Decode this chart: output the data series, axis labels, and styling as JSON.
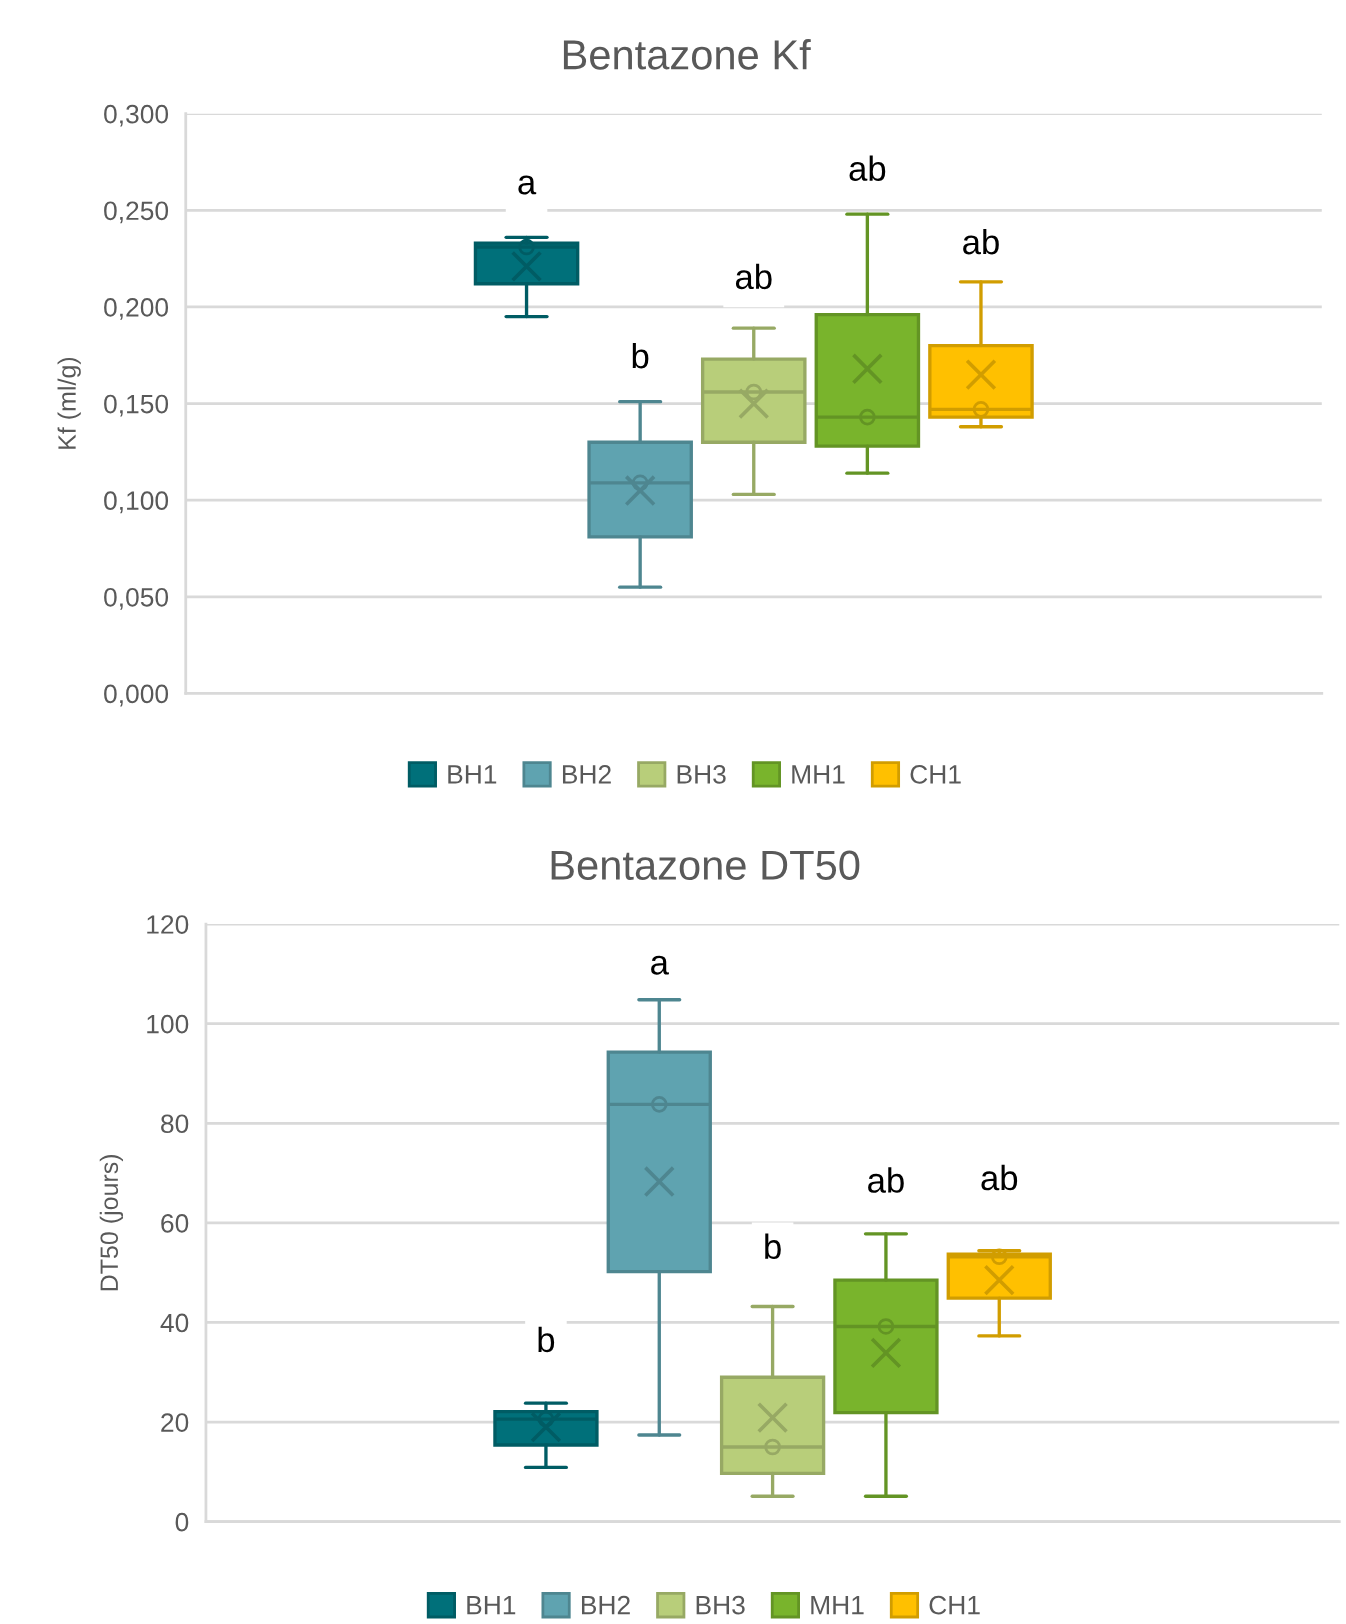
{
  "chart_data": [
    {
      "type": "box",
      "title": "Bentazone Kf",
      "ylabel": "Kf (ml/g)",
      "categories": [
        null
      ],
      "ylim": [
        0,
        0.3
      ],
      "yticks": [
        {
          "value": 0,
          "label": "0,000"
        },
        {
          "value": 0.05,
          "label": "0,050"
        },
        {
          "value": 0.1,
          "label": "0,100"
        },
        {
          "value": 0.15,
          "label": "0,150"
        },
        {
          "value": 0.2,
          "label": "0,200"
        },
        {
          "value": 0.25,
          "label": "0,250"
        },
        {
          "value": 0.3,
          "label": "0,300"
        }
      ],
      "grid": "y",
      "legend": "bottom",
      "series": [
        {
          "name": "BH1",
          "color": "#00707a",
          "boxes": [
            {
              "low": 0.195,
              "q1": 0.212,
              "median": 0.231,
              "q3": 0.233,
              "high": 0.236,
              "mean": 0.221
            }
          ]
        },
        {
          "name": "BH2",
          "color": "#5fa3b0",
          "boxes": [
            {
              "low": 0.055,
              "q1": 0.081,
              "median": 0.109,
              "q3": 0.13,
              "high": 0.151,
              "mean": 0.105
            }
          ]
        },
        {
          "name": "BH3",
          "color": "#b8ce7a",
          "boxes": [
            {
              "low": 0.103,
              "q1": 0.13,
              "median": 0.156,
              "q3": 0.173,
              "high": 0.189,
              "mean": 0.15
            }
          ]
        },
        {
          "name": "MH1",
          "color": "#79b42c",
          "boxes": [
            {
              "low": 0.114,
              "q1": 0.128,
              "median": 0.143,
              "q3": 0.196,
              "high": 0.248,
              "mean": 0.168
            }
          ]
        },
        {
          "name": "CH1",
          "color": "#ffc000",
          "boxes": [
            {
              "low": 0.138,
              "q1": 0.143,
              "median": 0.147,
              "q3": 0.18,
              "high": 0.213,
              "mean": 0.165
            }
          ]
        }
      ],
      "annotations": [
        {
          "text": "a",
          "y": 0.263
        },
        {
          "text": "b",
          "y": 0.173
        },
        {
          "text": "ab",
          "y": 0.214
        },
        {
          "text": "ab",
          "y": 0.27
        },
        {
          "text": "ab",
          "y": 0.232
        }
      ]
    },
    {
      "type": "box",
      "title": "Bentazone DT50",
      "ylabel": "DT50 (jours)",
      "categories": [
        null
      ],
      "ylim": [
        0,
        120
      ],
      "yticks": [
        0,
        20,
        40,
        60,
        80,
        100,
        120
      ],
      "grid": "y",
      "legend": "bottom",
      "series": [
        {
          "name": "BH1",
          "color": "#00707a",
          "boxes": [
            {
              "low": 10.9,
              "q1": 15.4,
              "median": 20.6,
              "q3": 22.1,
              "high": 23.8,
              "mean": 19.0
            }
          ]
        },
        {
          "name": "BH2",
          "color": "#5fa3b0",
          "boxes": [
            {
              "low": 17.4,
              "q1": 50.2,
              "median": 83.8,
              "q3": 94.3,
              "high": 104.8,
              "mean": 68.3
            }
          ]
        },
        {
          "name": "BH3",
          "color": "#b8ce7a",
          "boxes": [
            {
              "low": 5.1,
              "q1": 9.7,
              "median": 15.0,
              "q3": 29.0,
              "high": 43.2,
              "mean": 20.9
            }
          ]
        },
        {
          "name": "MH1",
          "color": "#79b42c",
          "boxes": [
            {
              "low": 5.1,
              "q1": 21.9,
              "median": 39.2,
              "q3": 48.5,
              "high": 57.8,
              "mean": 33.9
            }
          ]
        },
        {
          "name": "CH1",
          "color": "#ffc000",
          "boxes": [
            {
              "low": 37.3,
              "q1": 44.9,
              "median": 53.2,
              "q3": 53.7,
              "high": 54.4,
              "mean": 48.5
            }
          ]
        }
      ],
      "annotations": [
        {
          "text": "b",
          "y": 35.9
        },
        {
          "text": "a",
          "y": 111.7
        },
        {
          "text": "b",
          "y": 54.6
        },
        {
          "text": "ab",
          "y": 67.9
        },
        {
          "text": "ab",
          "y": 68.4
        }
      ]
    }
  ]
}
